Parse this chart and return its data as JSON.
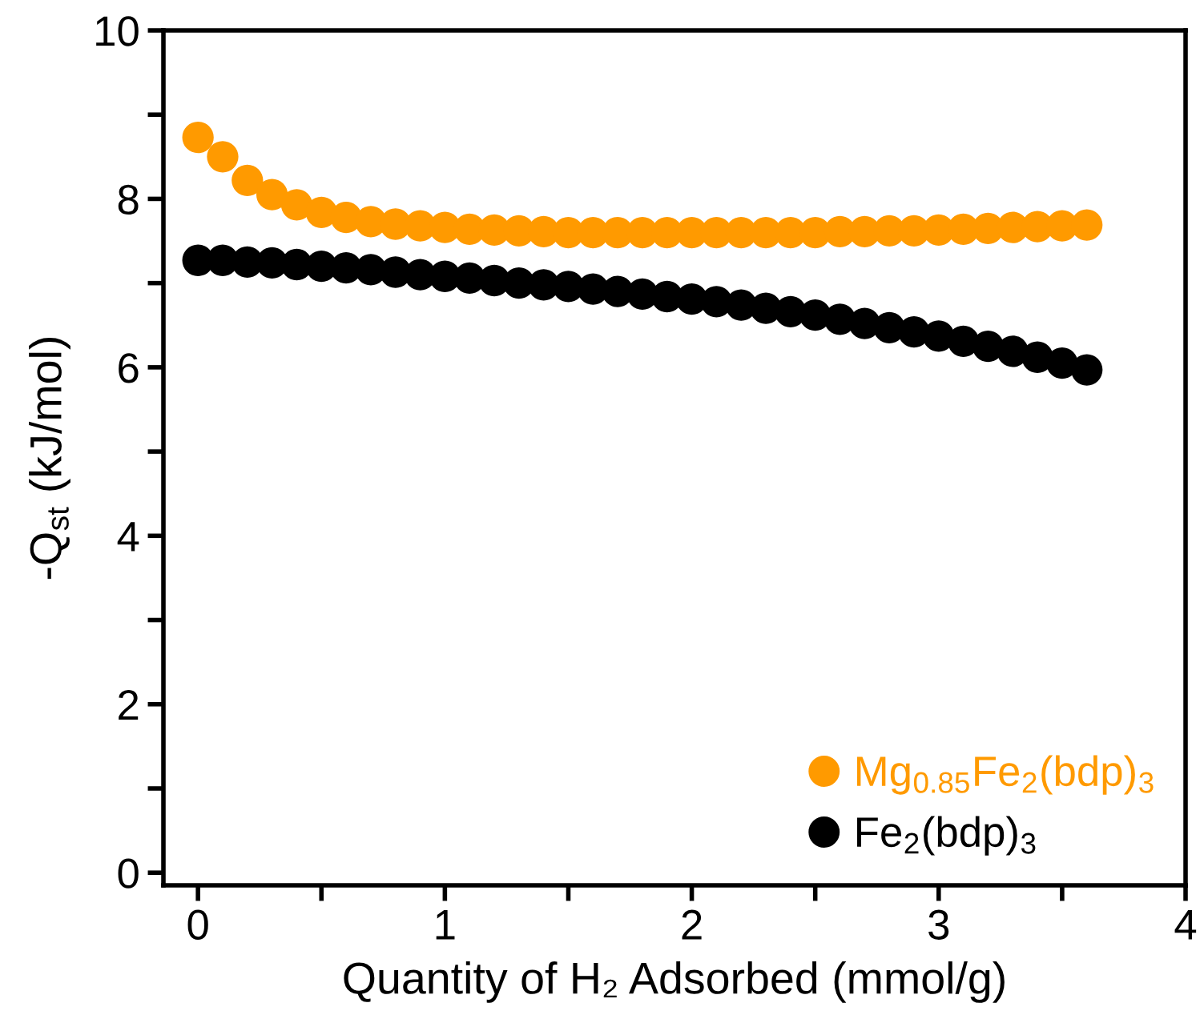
{
  "chart_data": {
    "type": "scatter",
    "xlabel": "Quantity of H₂ Adsorbed (mmol/g)",
    "ylabel": "-Q$_{st}$ (kJ/mol)",
    "xlim": [
      -0.14,
      4
    ],
    "ylim": [
      -0.15,
      10
    ],
    "xticks": [
      0,
      {
        "value": 0.5,
        "label": null
      },
      1,
      {
        "value": 1.5,
        "label": null
      },
      2,
      {
        "value": 2.5,
        "label": null
      },
      3,
      {
        "value": 3.5,
        "label": null
      },
      4
    ],
    "yticks": [
      0,
      {
        "value": 1,
        "label": null
      },
      2,
      {
        "value": 3,
        "label": null
      },
      4,
      {
        "value": 5,
        "label": null
      },
      6,
      {
        "value": 7,
        "label": null
      },
      8,
      {
        "value": 9,
        "label": null
      },
      10
    ],
    "x": [
      0,
      0.1,
      0.2,
      0.3,
      0.4,
      0.5,
      0.6,
      0.7,
      0.8,
      0.9,
      1.0,
      1.1,
      1.2,
      1.3,
      1.4,
      1.5,
      1.6,
      1.7,
      1.8,
      1.9,
      2.0,
      2.1,
      2.2,
      2.3,
      2.4,
      2.5,
      2.6,
      2.7,
      2.8,
      2.9,
      3.0,
      3.1,
      3.2,
      3.3,
      3.4,
      3.5,
      3.6
    ],
    "series": [
      {
        "name": "Mg$_{0.85}$Fe$_{2}$(bdp)$_{3}$",
        "color": "#ff9a00",
        "values": [
          8.73,
          8.5,
          8.22,
          8.05,
          7.93,
          7.84,
          7.78,
          7.73,
          7.7,
          7.68,
          7.66,
          7.64,
          7.63,
          7.62,
          7.61,
          7.6,
          7.6,
          7.6,
          7.6,
          7.6,
          7.6,
          7.6,
          7.6,
          7.6,
          7.6,
          7.6,
          7.61,
          7.61,
          7.62,
          7.62,
          7.63,
          7.64,
          7.65,
          7.66,
          7.67,
          7.68,
          7.69
        ]
      },
      {
        "name": "Fe$_{2}$(bdp)$_{3}$",
        "color": "#000000",
        "values": [
          7.27,
          7.27,
          7.25,
          7.24,
          7.22,
          7.2,
          7.18,
          7.16,
          7.13,
          7.1,
          7.08,
          7.06,
          7.03,
          7.0,
          6.98,
          6.96,
          6.93,
          6.9,
          6.87,
          6.84,
          6.81,
          6.78,
          6.74,
          6.7,
          6.66,
          6.62,
          6.57,
          6.52,
          6.47,
          6.42,
          6.37,
          6.31,
          6.25,
          6.19,
          6.12,
          6.05,
          5.97
        ]
      }
    ],
    "marker": "circle",
    "legend": "bottom right",
    "grid": false
  }
}
